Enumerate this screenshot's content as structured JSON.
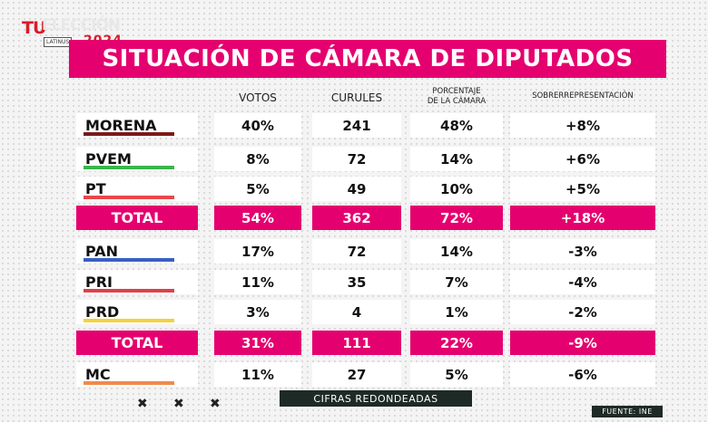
{
  "logo": {
    "part1": "TU",
    "part2": "ELECCIÓN",
    "network": "LATINUS",
    "year": "2024"
  },
  "title": "SITUACIÓN DE CÁMARA DE DIPUTADOS",
  "headers": {
    "votos": "VOTOS",
    "curules": "CURULES",
    "porcentaje_line1": "PORCENTAJE",
    "porcentaje_line2": "DE LA CÁMARA",
    "sobre": "SOBRERREPRESENTACIÓN"
  },
  "rows": [
    {
      "party": "MORENA",
      "votos": "40%",
      "curules": "241",
      "porcentaje": "48%",
      "sobre": "+8%",
      "color": "#7a1a1a"
    },
    {
      "party": "PVEM",
      "votos": "8%",
      "curules": "72",
      "porcentaje": "14%",
      "sobre": "+6%",
      "color": "#3cb44b"
    },
    {
      "party": "PT",
      "votos": "5%",
      "curules": "49",
      "porcentaje": "10%",
      "sobre": "+5%",
      "color": "#e8474a"
    },
    {
      "party": "TOTAL",
      "votos": "54%",
      "curules": "362",
      "porcentaje": "72%",
      "sobre": "+18%",
      "total": true
    },
    {
      "party": "PAN",
      "votos": "17%",
      "curules": "72",
      "porcentaje": "14%",
      "sobre": "-3%",
      "color": "#3a5fc4"
    },
    {
      "party": "PRI",
      "votos": "11%",
      "curules": "35",
      "porcentaje": "7%",
      "sobre": "-4%",
      "color": "#e0404a"
    },
    {
      "party": "PRD",
      "votos": "3%",
      "curules": "4",
      "porcentaje": "1%",
      "sobre": "-2%",
      "color": "#f4d23c"
    },
    {
      "party": "TOTAL",
      "votos": "31%",
      "curules": "111",
      "porcentaje": "22%",
      "sobre": "-9%",
      "total": true
    },
    {
      "party": "MC",
      "votos": "11%",
      "curules": "27",
      "porcentaje": "5%",
      "sobre": "-6%",
      "color": "#f08a4b"
    }
  ],
  "footer": {
    "note": "CIFRAS REDONDEADAS",
    "source": "FUENTE: INE",
    "marks": [
      "✖",
      "✖",
      "✖"
    ]
  }
}
